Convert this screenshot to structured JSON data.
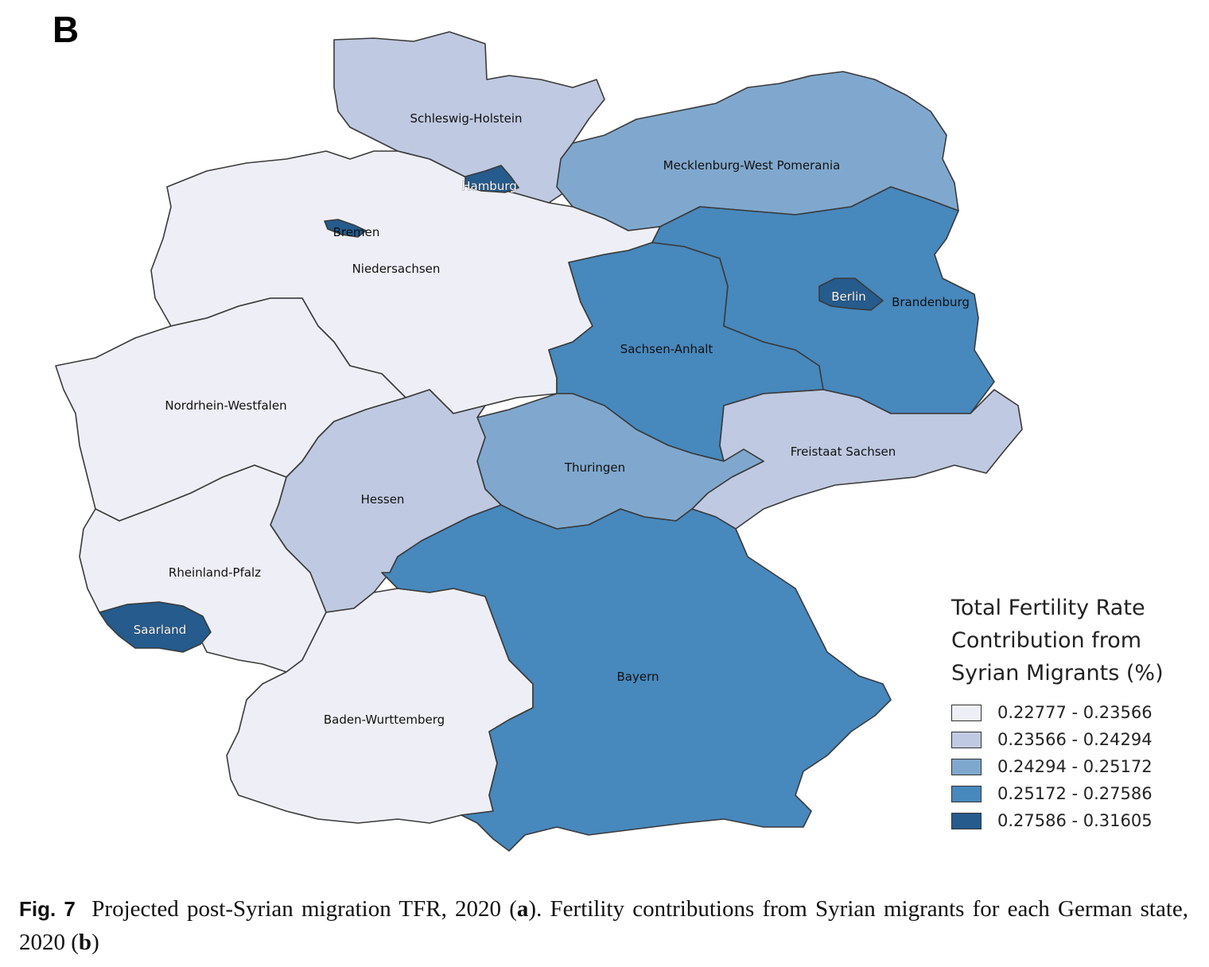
{
  "panel_letter": "B",
  "colors": {
    "class1": "#eeeff6",
    "class2": "#bfc9e1",
    "class3": "#80a8ce",
    "class4": "#4788bd",
    "class5": "#255b8d"
  },
  "states": {
    "schleswig_holstein": {
      "name": "Schleswig-Holstein",
      "class": 2
    },
    "hamburg": {
      "name": "Hamburg",
      "class": 5
    },
    "mecklenburg": {
      "name": "Mecklenburg-West Pomerania",
      "class": 3
    },
    "bremen": {
      "name": "Bremen",
      "class": 5
    },
    "niedersachsen": {
      "name": "Niedersachsen",
      "class": 1
    },
    "berlin": {
      "name": "Berlin",
      "class": 5
    },
    "brandenburg": {
      "name": "Brandenburg",
      "class": 4
    },
    "sachsen_anhalt": {
      "name": "Sachsen-Anhalt",
      "class": 4
    },
    "nrw": {
      "name": "Nordrhein-Westfalen",
      "class": 1
    },
    "sachsen": {
      "name": "Freistaat Sachsen",
      "class": 2
    },
    "thueringen": {
      "name": "Thuringen",
      "class": 3
    },
    "hessen": {
      "name": "Hessen",
      "class": 2
    },
    "rheinland_pfalz": {
      "name": "Rheinland-Pfalz",
      "class": 1
    },
    "saarland": {
      "name": "Saarland",
      "class": 5
    },
    "bayern": {
      "name": "Bayern",
      "class": 4
    },
    "baden_wuerttemberg": {
      "name": "Baden-Wurttemberg",
      "class": 1
    }
  },
  "legend": {
    "title_line1": "Total Fertility Rate",
    "title_line2": "Contribution from",
    "title_line3": "Syrian Migrants (%)",
    "items": [
      {
        "label": "0.22777 - 0.23566",
        "color": "#eeeff6"
      },
      {
        "label": "0.23566 - 0.24294",
        "color": "#bfc9e1"
      },
      {
        "label": "0.24294 - 0.25172",
        "color": "#80a8ce"
      },
      {
        "label": "0.25172 - 0.27586",
        "color": "#4788bd"
      },
      {
        "label": "0.27586 - 0.31605",
        "color": "#255b8d"
      }
    ]
  },
  "caption": {
    "fig_label": "Fig. 7",
    "text_part1": "Projected post-Syrian migration TFR, 2020 (",
    "a": "a",
    "text_part2": "). Fertility contributions from Syrian migrants for each German state, 2020 (",
    "b": "b",
    "text_part3": ")"
  }
}
